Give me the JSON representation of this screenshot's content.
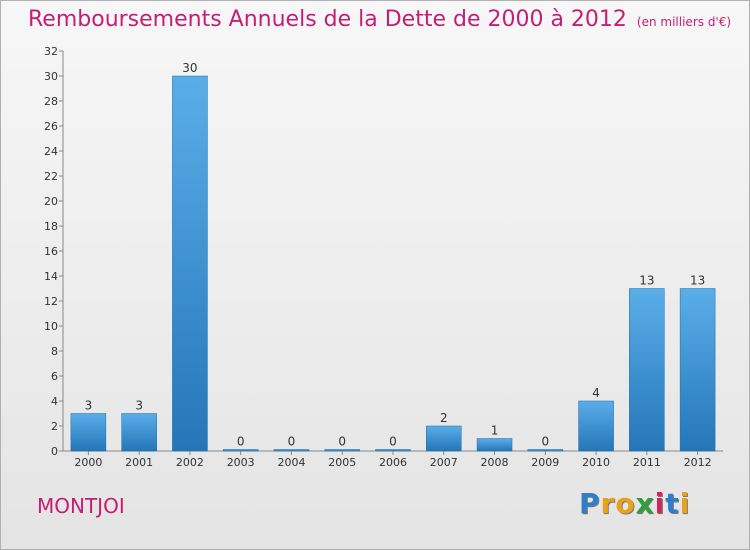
{
  "page": {
    "title": "Remboursements Annuels de la Dette de 2000 à 2012",
    "unit_note": "(en milliers d'€)",
    "commune": "MONTJOI",
    "logo_text": "Proxiti",
    "colors": {
      "title": "#c41f73",
      "bar_light": "#5aaee8",
      "bar_dark": "#2476b8"
    }
  },
  "chart_data": {
    "type": "bar",
    "title": "Remboursements Annuels de la Dette de 2000 à 2012",
    "subtitle": "(en milliers d'€)",
    "categories": [
      "2000",
      "2001",
      "2002",
      "2003",
      "2004",
      "2005",
      "2006",
      "2007",
      "2008",
      "2009",
      "2010",
      "2011",
      "2012"
    ],
    "values": [
      3,
      3,
      30,
      0,
      0,
      0,
      0,
      2,
      1,
      0,
      4,
      13,
      13
    ],
    "value_labels": [
      "3",
      "3",
      "30",
      "0",
      "0",
      "0",
      "0",
      "2",
      "1",
      "0",
      "4",
      "13",
      "13"
    ],
    "ylim": [
      0,
      32
    ],
    "yticks": [
      0,
      2,
      4,
      6,
      8,
      10,
      12,
      14,
      16,
      18,
      20,
      22,
      24,
      26,
      28,
      30,
      32
    ],
    "grid": false,
    "xlabel": "",
    "ylabel": ""
  }
}
